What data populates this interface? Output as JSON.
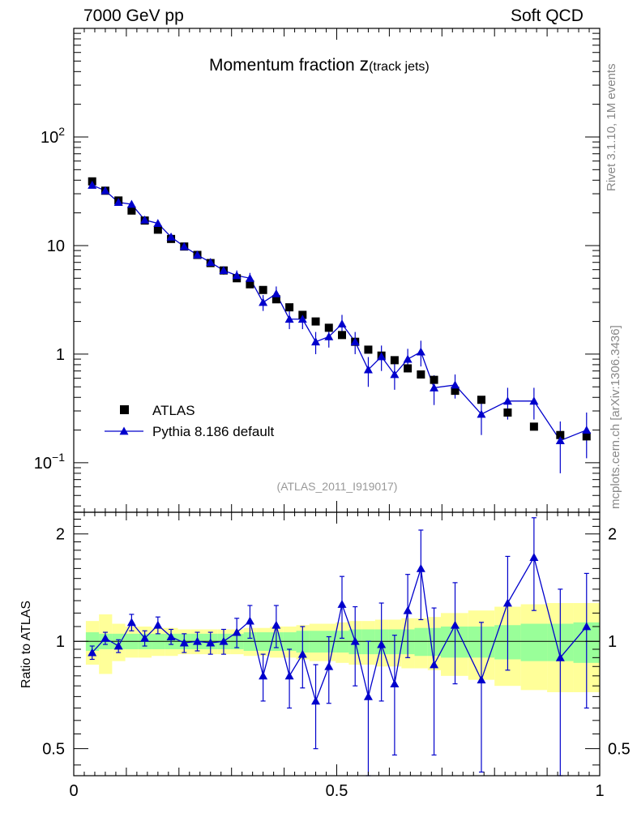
{
  "header": {
    "left": "7000 GeV pp",
    "right": "Soft QCD"
  },
  "side_labels": {
    "rivet": "Rivet 3.1.10,  1M events",
    "mcplots": "mcplots.cern.ch [arXiv:1306.3436]"
  },
  "chart_data": {
    "type": "scatter",
    "title_main": "Momentum fraction ",
    "title_z": "z",
    "title_sub": "(track jets)",
    "analysis_label": "(ATLAS_2011_I919017)",
    "xlim": [
      0,
      1
    ],
    "x_ticks": [
      0,
      0.5,
      1
    ],
    "x_tick_labels": [
      "0",
      "0.5",
      "1"
    ],
    "main": {
      "yscale": "log",
      "ylim": [
        0.035,
        1000
      ],
      "y_tick_labels": [
        {
          "value": 0.1,
          "base": "10",
          "exp": "−1"
        },
        {
          "value": 1,
          "base": "1",
          "exp": ""
        },
        {
          "value": 10,
          "base": "10",
          "exp": ""
        },
        {
          "value": 100,
          "base": "10",
          "exp": "2"
        }
      ]
    },
    "ratio": {
      "ylabel": "Ratio to ATLAS",
      "ylim": [
        0.42,
        2.3
      ],
      "y_ticks": [
        0.5,
        1,
        2
      ],
      "y_tick_labels": [
        "0.5",
        "1",
        "2"
      ]
    },
    "legend": {
      "position": "bottom-left",
      "entries": [
        "ATLAS",
        "Pythia 8.186 default"
      ]
    },
    "colors": {
      "data": "#000000",
      "mc": "#0000cc",
      "band_inner": "#99ff99",
      "band_outer": "#ffff99",
      "side_text": "#888888"
    },
    "series": [
      {
        "name": "ATLAS",
        "x": [
          0.035,
          0.06,
          0.085,
          0.11,
          0.135,
          0.16,
          0.185,
          0.21,
          0.235,
          0.26,
          0.285,
          0.31,
          0.335,
          0.36,
          0.385,
          0.41,
          0.435,
          0.46,
          0.485,
          0.51,
          0.535,
          0.56,
          0.585,
          0.61,
          0.635,
          0.66,
          0.685,
          0.725,
          0.775,
          0.825,
          0.875,
          0.925,
          0.975
        ],
        "y": [
          39,
          32,
          26,
          21,
          17,
          14,
          11.5,
          9.8,
          8.2,
          6.9,
          5.9,
          5.0,
          4.4,
          3.9,
          3.2,
          2.7,
          2.3,
          2.0,
          1.75,
          1.5,
          1.3,
          1.1,
          0.97,
          0.88,
          0.74,
          0.65,
          0.58,
          0.46,
          0.38,
          0.29,
          0.215,
          0.18,
          0.175
        ]
      },
      {
        "name": "Pythia 8.186 default",
        "x": [
          0.035,
          0.06,
          0.085,
          0.11,
          0.135,
          0.16,
          0.185,
          0.21,
          0.235,
          0.26,
          0.285,
          0.31,
          0.335,
          0.36,
          0.385,
          0.41,
          0.435,
          0.46,
          0.485,
          0.51,
          0.535,
          0.56,
          0.585,
          0.61,
          0.635,
          0.66,
          0.685,
          0.725,
          0.775,
          0.825,
          0.875,
          0.925,
          0.975
        ],
        "y": [
          36,
          32,
          25,
          24,
          17.2,
          16,
          12,
          9.8,
          8.2,
          7.0,
          5.9,
          5.3,
          5.0,
          3.0,
          3.6,
          2.1,
          2.1,
          1.3,
          1.45,
          1.9,
          1.3,
          0.72,
          0.95,
          0.65,
          0.9,
          1.05,
          0.49,
          0.52,
          0.28,
          0.37,
          0.37,
          0.16,
          0.2
        ],
        "yerr": [
          1.2,
          1.0,
          0.9,
          1.2,
          0.8,
          0.9,
          0.6,
          0.6,
          0.6,
          0.6,
          0.5,
          0.6,
          0.6,
          0.5,
          0.6,
          0.4,
          0.4,
          0.3,
          0.3,
          0.4,
          0.3,
          0.22,
          0.25,
          0.18,
          0.22,
          0.28,
          0.15,
          0.13,
          0.1,
          0.12,
          0.12,
          0.08,
          0.09
        ]
      }
    ],
    "ratio_series": {
      "x": [
        0.035,
        0.06,
        0.085,
        0.11,
        0.135,
        0.16,
        0.185,
        0.21,
        0.235,
        0.26,
        0.285,
        0.31,
        0.335,
        0.36,
        0.385,
        0.41,
        0.435,
        0.46,
        0.485,
        0.51,
        0.535,
        0.56,
        0.585,
        0.61,
        0.635,
        0.66,
        0.685,
        0.725,
        0.775,
        0.825,
        0.875,
        0.925,
        0.975
      ],
      "y": [
        0.93,
        1.02,
        0.97,
        1.13,
        1.02,
        1.11,
        1.03,
        0.99,
        1.0,
        0.99,
        1.0,
        1.06,
        1.14,
        0.8,
        1.11,
        0.8,
        0.92,
        0.68,
        0.85,
        1.27,
        1.0,
        0.7,
        0.98,
        0.76,
        1.22,
        1.6,
        0.86,
        1.11,
        0.78,
        1.28,
        1.72,
        0.9,
        1.1
      ],
      "yerr": [
        0.04,
        0.04,
        0.04,
        0.06,
        0.05,
        0.06,
        0.05,
        0.06,
        0.06,
        0.07,
        0.08,
        0.1,
        0.12,
        0.12,
        0.15,
        0.15,
        0.18,
        0.18,
        0.18,
        0.25,
        0.25,
        0.3,
        0.3,
        0.28,
        0.32,
        0.45,
        0.38,
        0.35,
        0.35,
        0.45,
        0.5,
        0.5,
        0.45
      ]
    },
    "bands": {
      "x_edges": [
        0.023,
        0.048,
        0.073,
        0.098,
        0.123,
        0.148,
        0.173,
        0.198,
        0.223,
        0.248,
        0.273,
        0.298,
        0.323,
        0.348,
        0.373,
        0.398,
        0.423,
        0.448,
        0.473,
        0.498,
        0.523,
        0.548,
        0.573,
        0.598,
        0.623,
        0.648,
        0.673,
        0.698,
        0.75,
        0.8,
        0.85,
        0.9,
        0.95,
        1.0
      ],
      "inner": [
        0.06,
        0.05,
        0.05,
        0.05,
        0.05,
        0.05,
        0.05,
        0.05,
        0.05,
        0.05,
        0.05,
        0.05,
        0.06,
        0.06,
        0.06,
        0.06,
        0.07,
        0.07,
        0.07,
        0.07,
        0.08,
        0.08,
        0.08,
        0.08,
        0.08,
        0.09,
        0.09,
        0.1,
        0.1,
        0.11,
        0.12,
        0.12,
        0.13
      ],
      "outer": [
        0.14,
        0.19,
        0.12,
        0.1,
        0.1,
        0.09,
        0.09,
        0.08,
        0.08,
        0.08,
        0.08,
        0.08,
        0.09,
        0.09,
        0.1,
        0.1,
        0.11,
        0.12,
        0.12,
        0.13,
        0.14,
        0.14,
        0.15,
        0.15,
        0.16,
        0.16,
        0.17,
        0.2,
        0.22,
        0.25,
        0.27,
        0.28,
        0.28
      ]
    }
  }
}
